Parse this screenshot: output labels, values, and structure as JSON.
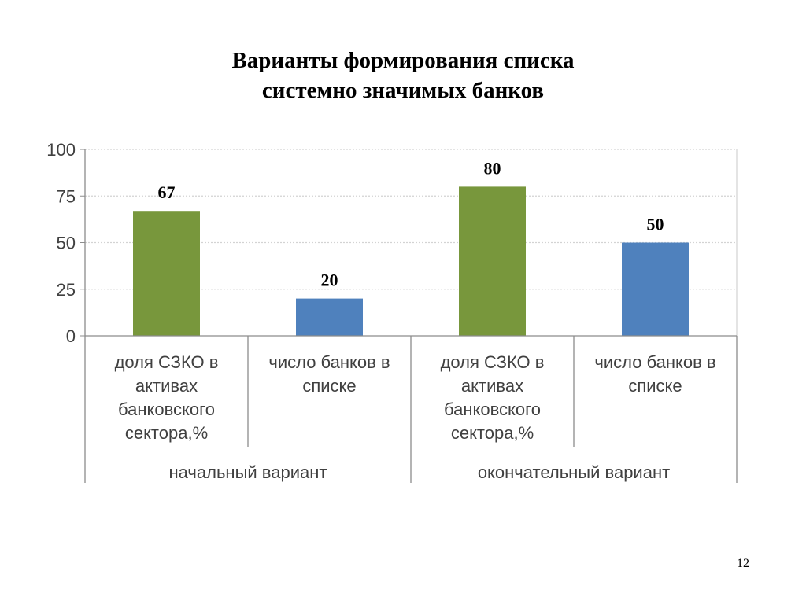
{
  "slide": {
    "title_lines": [
      "Варианты формирования списка",
      "системно значимых банков"
    ],
    "page_number": "12"
  },
  "chart_data": {
    "type": "bar",
    "title": "",
    "xlabel": "",
    "ylabel": "",
    "ylim": [
      0,
      100
    ],
    "yticks": [
      0,
      25,
      50,
      75,
      100
    ],
    "grid": true,
    "categories": [
      {
        "label_lines": [
          "доля СЗКО в",
          "активах",
          "банковского",
          "сектора,%"
        ],
        "group": 0,
        "value": 67,
        "data_label": "67",
        "color": "#78973c"
      },
      {
        "label_lines": [
          "число банков в",
          "списке"
        ],
        "group": 0,
        "value": 20,
        "data_label": "20",
        "color": "#4f81bd"
      },
      {
        "label_lines": [
          "доля СЗКО в",
          "активах",
          "банковского",
          "сектора,%"
        ],
        "group": 1,
        "value": 80,
        "data_label": "80",
        "color": "#78973c"
      },
      {
        "label_lines": [
          "число банков в",
          "списке"
        ],
        "group": 1,
        "value": 50,
        "data_label": "50",
        "color": "#4f81bd"
      }
    ],
    "groups": [
      "начальный вариант",
      "окончательный вариант"
    ],
    "colors": {
      "grid": "#d3d3d3",
      "axis": "#8c8c8c",
      "text": "#404040"
    }
  }
}
